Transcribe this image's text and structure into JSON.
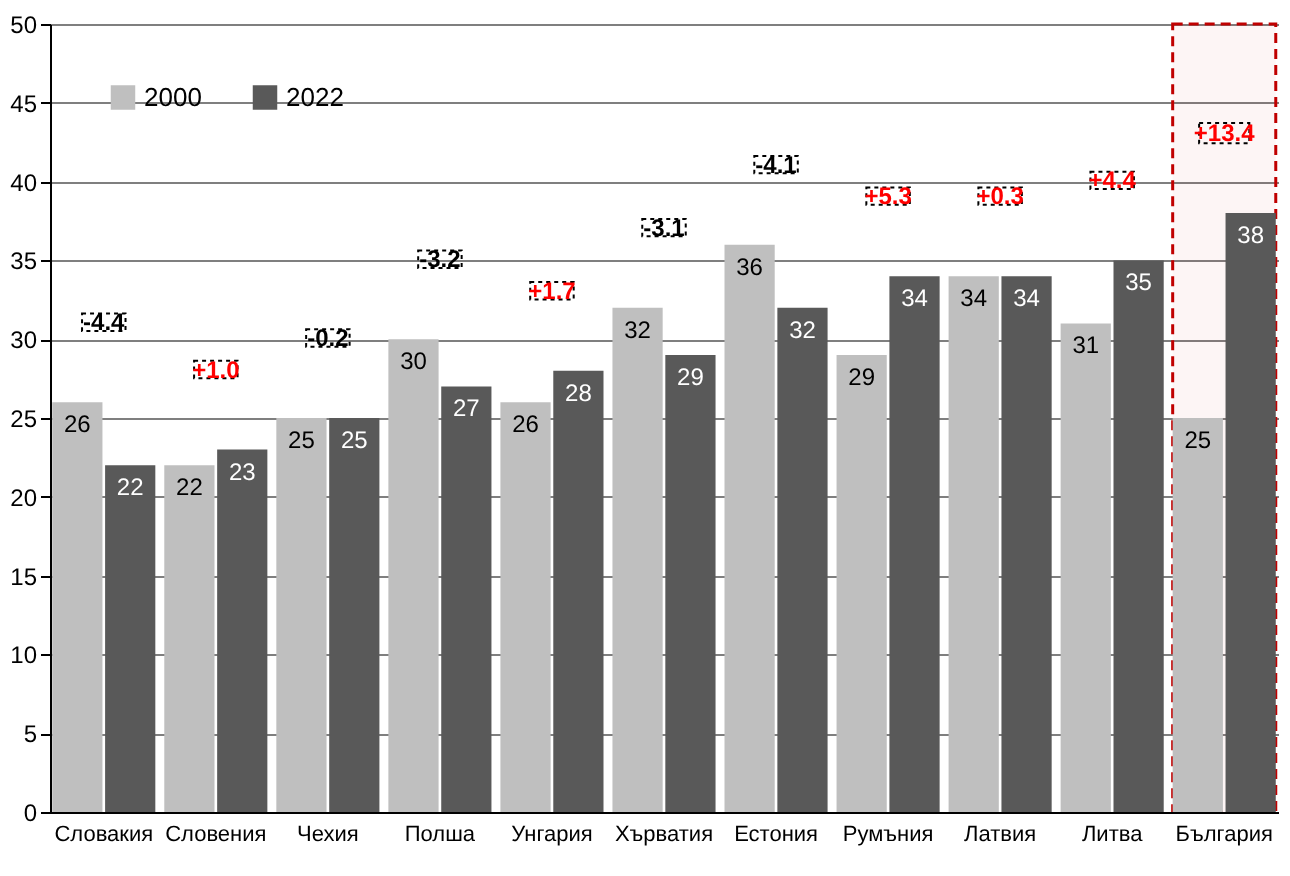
{
  "chart_data": {
    "type": "bar",
    "categories": [
      "Словакия",
      "Словения",
      "Чехия",
      "Полша",
      "Унгария",
      "Хърватия",
      "Естония",
      "Румъния",
      "Латвия",
      "Литва",
      "България"
    ],
    "series": [
      {
        "name": "2000",
        "color": "#bfbfbf",
        "values": [
          26,
          22,
          25,
          30,
          26,
          32,
          36,
          29,
          34,
          31,
          25
        ]
      },
      {
        "name": "2022",
        "color": "#595959",
        "values": [
          22,
          23,
          25,
          27,
          28,
          29,
          32,
          34,
          34,
          35,
          38
        ]
      }
    ],
    "ylim": [
      0,
      50
    ],
    "yticks": [
      0,
      5,
      10,
      15,
      20,
      25,
      30,
      35,
      40,
      45,
      50
    ],
    "data_labels": true,
    "grid": "y",
    "legend": "top left",
    "annotations": [
      "-4.4",
      "+1.0",
      "-0.2",
      "-3.2",
      "+1.7",
      "-3.1",
      "-4.1",
      "+5.3",
      "+0.3",
      "+4.4",
      "+13.4"
    ],
    "bands": [
      {
        "axis": "x",
        "from": "България",
        "to": "България",
        "color": "#c00000"
      }
    ]
  }
}
